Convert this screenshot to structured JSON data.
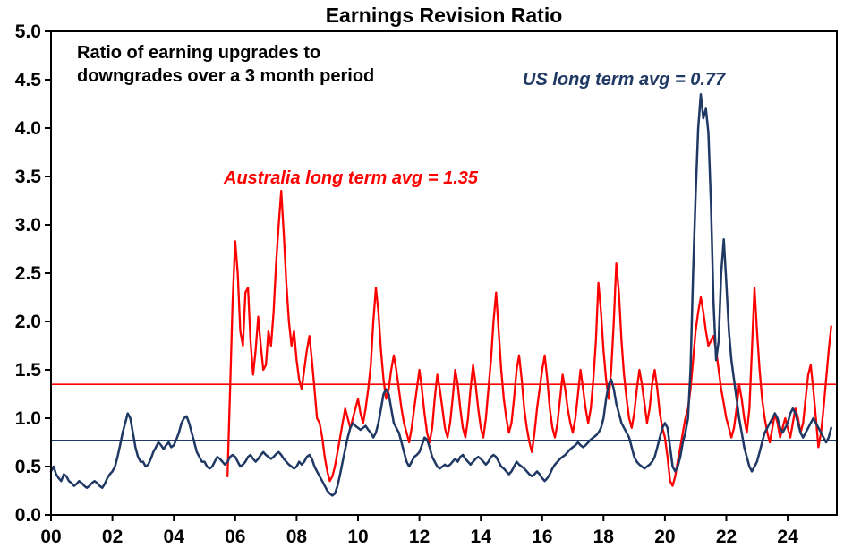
{
  "chart_data": {
    "type": "line",
    "title": "Earnings Revision Ratio",
    "xlabel": "",
    "ylabel": "",
    "legend": "none",
    "grid": "off",
    "annotations": {
      "subtitle": "Ratio of earning upgrades to\ndowngrades over a 3 month period",
      "us_avg_label": "US long term avg = 0.77",
      "australia_avg_label": "Australia long term avg = 1.35"
    },
    "colors": {
      "australia": "#FF0000",
      "us": "#1F3864",
      "axis": "#000000",
      "background": "#FFFFFF"
    },
    "x_axis": {
      "min": 2000.0,
      "max": 2025.6,
      "ticks": [
        {
          "year": 2000,
          "label": "00"
        },
        {
          "year": 2002,
          "label": "02"
        },
        {
          "year": 2004,
          "label": "04"
        },
        {
          "year": 2006,
          "label": "06"
        },
        {
          "year": 2008,
          "label": "08"
        },
        {
          "year": 2010,
          "label": "10"
        },
        {
          "year": 2012,
          "label": "12"
        },
        {
          "year": 2014,
          "label": "14"
        },
        {
          "year": 2016,
          "label": "16"
        },
        {
          "year": 2018,
          "label": "18"
        },
        {
          "year": 2020,
          "label": "20"
        },
        {
          "year": 2022,
          "label": "22"
        },
        {
          "year": 2024,
          "label": "24"
        }
      ]
    },
    "y_axis": {
      "min": 0.0,
      "max": 5.0,
      "ticks": [
        {
          "value": 0.0,
          "label": "0.0"
        },
        {
          "value": 0.5,
          "label": "0.5"
        },
        {
          "value": 1.0,
          "label": "1.0"
        },
        {
          "value": 1.5,
          "label": "1.5"
        },
        {
          "value": 2.0,
          "label": "2.0"
        },
        {
          "value": 2.5,
          "label": "2.5"
        },
        {
          "value": 3.0,
          "label": "3.0"
        },
        {
          "value": 3.5,
          "label": "3.5"
        },
        {
          "value": 4.0,
          "label": "4.0"
        },
        {
          "value": 4.5,
          "label": "4.5"
        },
        {
          "value": 5.0,
          "label": "5.0"
        }
      ]
    },
    "reference_lines": [
      {
        "name": "australia-long-term-avg",
        "value": 1.35,
        "color": "#FF0000"
      },
      {
        "name": "us-long-term-avg",
        "value": 0.77,
        "color": "#1F3864"
      }
    ],
    "series": [
      {
        "name": "Australia",
        "color": "#FF0000",
        "width": 2.3,
        "start_year": 2005.75,
        "interval": "monthly",
        "long_term_avg": 1.35,
        "values": [
          0.4,
          1.3,
          2.2,
          2.83,
          2.5,
          1.9,
          1.75,
          2.3,
          2.35,
          1.8,
          1.45,
          1.7,
          2.05,
          1.75,
          1.5,
          1.55,
          1.9,
          1.75,
          2.1,
          2.6,
          3.0,
          3.35,
          2.9,
          2.4,
          2.0,
          1.75,
          1.9,
          1.6,
          1.4,
          1.3,
          1.5,
          1.7,
          1.85,
          1.6,
          1.3,
          1.0,
          0.95,
          0.8,
          0.6,
          0.45,
          0.35,
          0.4,
          0.5,
          0.65,
          0.8,
          0.95,
          1.1,
          1.0,
          0.9,
          1.0,
          1.1,
          1.2,
          1.05,
          0.95,
          1.1,
          1.3,
          1.55,
          2.0,
          2.35,
          2.1,
          1.7,
          1.4,
          1.2,
          1.3,
          1.5,
          1.65,
          1.5,
          1.3,
          1.1,
          0.95,
          0.85,
          0.75,
          0.9,
          1.1,
          1.3,
          1.5,
          1.3,
          1.05,
          0.85,
          0.75,
          0.9,
          1.2,
          1.45,
          1.3,
          1.1,
          0.9,
          0.8,
          0.95,
          1.2,
          1.5,
          1.35,
          1.1,
          0.9,
          0.8,
          1.0,
          1.3,
          1.55,
          1.35,
          1.1,
          0.9,
          0.8,
          1.0,
          1.3,
          1.6,
          2.0,
          2.3,
          1.9,
          1.5,
          1.2,
          1.0,
          0.85,
          0.95,
          1.2,
          1.5,
          1.65,
          1.4,
          1.1,
          0.9,
          0.75,
          0.65,
          0.85,
          1.1,
          1.3,
          1.5,
          1.65,
          1.4,
          1.1,
          0.9,
          0.8,
          0.95,
          1.2,
          1.45,
          1.3,
          1.1,
          0.95,
          0.85,
          1.0,
          1.25,
          1.5,
          1.3,
          1.1,
          0.95,
          1.1,
          1.4,
          1.8,
          2.4,
          2.1,
          1.7,
          1.4,
          1.2,
          1.5,
          2.0,
          2.6,
          2.3,
          1.8,
          1.45,
          1.2,
          1.0,
          0.9,
          1.05,
          1.3,
          1.5,
          1.35,
          1.15,
          0.95,
          1.1,
          1.35,
          1.5,
          1.3,
          1.05,
          0.9,
          0.8,
          0.6,
          0.35,
          0.3,
          0.4,
          0.55,
          0.7,
          0.85,
          1.0,
          1.1,
          1.3,
          1.6,
          1.9,
          2.1,
          2.25,
          2.1,
          1.9,
          1.75,
          1.8,
          1.85,
          1.7,
          1.5,
          1.3,
          1.15,
          1.0,
          0.9,
          0.8,
          0.9,
          1.1,
          1.35,
          1.2,
          1.0,
          0.85,
          1.1,
          1.7,
          2.35,
          1.9,
          1.5,
          1.2,
          1.0,
          0.85,
          0.75,
          0.9,
          1.05,
          0.95,
          0.8,
          0.9,
          1.0,
          0.9,
          0.8,
          0.95,
          1.1,
          1.0,
          0.85,
          0.95,
          1.2,
          1.45,
          1.55,
          1.3,
          1.0,
          0.7,
          0.85,
          1.1,
          1.4,
          1.7,
          1.95
        ]
      },
      {
        "name": "US",
        "color": "#1F3864",
        "width": 2.5,
        "start_year": 2000.0,
        "interval": "monthly",
        "long_term_avg": 0.77,
        "values": [
          0.45,
          0.5,
          0.42,
          0.38,
          0.35,
          0.42,
          0.4,
          0.35,
          0.33,
          0.3,
          0.32,
          0.35,
          0.33,
          0.3,
          0.28,
          0.3,
          0.33,
          0.35,
          0.33,
          0.3,
          0.28,
          0.32,
          0.38,
          0.42,
          0.45,
          0.5,
          0.6,
          0.72,
          0.85,
          0.95,
          1.05,
          1.0,
          0.85,
          0.7,
          0.6,
          0.55,
          0.55,
          0.5,
          0.52,
          0.58,
          0.65,
          0.7,
          0.75,
          0.72,
          0.68,
          0.72,
          0.75,
          0.7,
          0.72,
          0.78,
          0.85,
          0.95,
          1.0,
          1.02,
          0.95,
          0.85,
          0.75,
          0.65,
          0.6,
          0.55,
          0.55,
          0.5,
          0.48,
          0.5,
          0.55,
          0.6,
          0.58,
          0.55,
          0.52,
          0.55,
          0.6,
          0.62,
          0.6,
          0.55,
          0.5,
          0.52,
          0.55,
          0.6,
          0.62,
          0.58,
          0.55,
          0.58,
          0.62,
          0.65,
          0.62,
          0.6,
          0.58,
          0.6,
          0.63,
          0.65,
          0.62,
          0.58,
          0.55,
          0.52,
          0.5,
          0.48,
          0.5,
          0.55,
          0.52,
          0.55,
          0.6,
          0.62,
          0.58,
          0.5,
          0.45,
          0.4,
          0.35,
          0.3,
          0.25,
          0.22,
          0.2,
          0.22,
          0.3,
          0.42,
          0.55,
          0.68,
          0.8,
          0.9,
          0.95,
          0.92,
          0.9,
          0.88,
          0.9,
          0.92,
          0.88,
          0.85,
          0.8,
          0.85,
          0.95,
          1.1,
          1.25,
          1.3,
          1.25,
          1.1,
          0.95,
          0.9,
          0.85,
          0.75,
          0.65,
          0.55,
          0.5,
          0.55,
          0.6,
          0.62,
          0.65,
          0.72,
          0.8,
          0.78,
          0.7,
          0.6,
          0.55,
          0.5,
          0.48,
          0.5,
          0.52,
          0.5,
          0.52,
          0.55,
          0.58,
          0.55,
          0.6,
          0.62,
          0.58,
          0.55,
          0.52,
          0.55,
          0.58,
          0.6,
          0.58,
          0.55,
          0.52,
          0.55,
          0.6,
          0.62,
          0.6,
          0.55,
          0.5,
          0.48,
          0.45,
          0.42,
          0.45,
          0.5,
          0.55,
          0.52,
          0.5,
          0.48,
          0.45,
          0.42,
          0.4,
          0.42,
          0.45,
          0.42,
          0.38,
          0.35,
          0.38,
          0.42,
          0.48,
          0.52,
          0.55,
          0.58,
          0.6,
          0.62,
          0.65,
          0.68,
          0.7,
          0.72,
          0.75,
          0.72,
          0.7,
          0.72,
          0.75,
          0.78,
          0.8,
          0.82,
          0.85,
          0.9,
          1.0,
          1.2,
          1.35,
          1.4,
          1.3,
          1.15,
          1.05,
          0.95,
          0.9,
          0.85,
          0.8,
          0.7,
          0.6,
          0.55,
          0.52,
          0.5,
          0.48,
          0.5,
          0.52,
          0.55,
          0.6,
          0.7,
          0.8,
          0.9,
          0.95,
          0.9,
          0.7,
          0.5,
          0.45,
          0.5,
          0.6,
          0.75,
          0.85,
          1.0,
          1.5,
          2.5,
          3.3,
          4.0,
          4.35,
          4.1,
          4.2,
          3.95,
          3.2,
          2.2,
          1.6,
          1.8,
          2.5,
          2.85,
          2.4,
          1.9,
          1.6,
          1.4,
          1.2,
          1.0,
          0.85,
          0.7,
          0.6,
          0.5,
          0.45,
          0.5,
          0.55,
          0.65,
          0.75,
          0.85,
          0.9,
          0.95,
          1.0,
          1.05,
          1.0,
          0.9,
          0.85,
          0.9,
          0.95,
          1.05,
          1.1,
          1.05,
          0.95,
          0.85,
          0.8,
          0.85,
          0.9,
          0.95,
          1.0,
          0.95,
          0.9,
          0.85,
          0.8,
          0.75,
          0.8,
          0.9
        ]
      }
    ]
  }
}
